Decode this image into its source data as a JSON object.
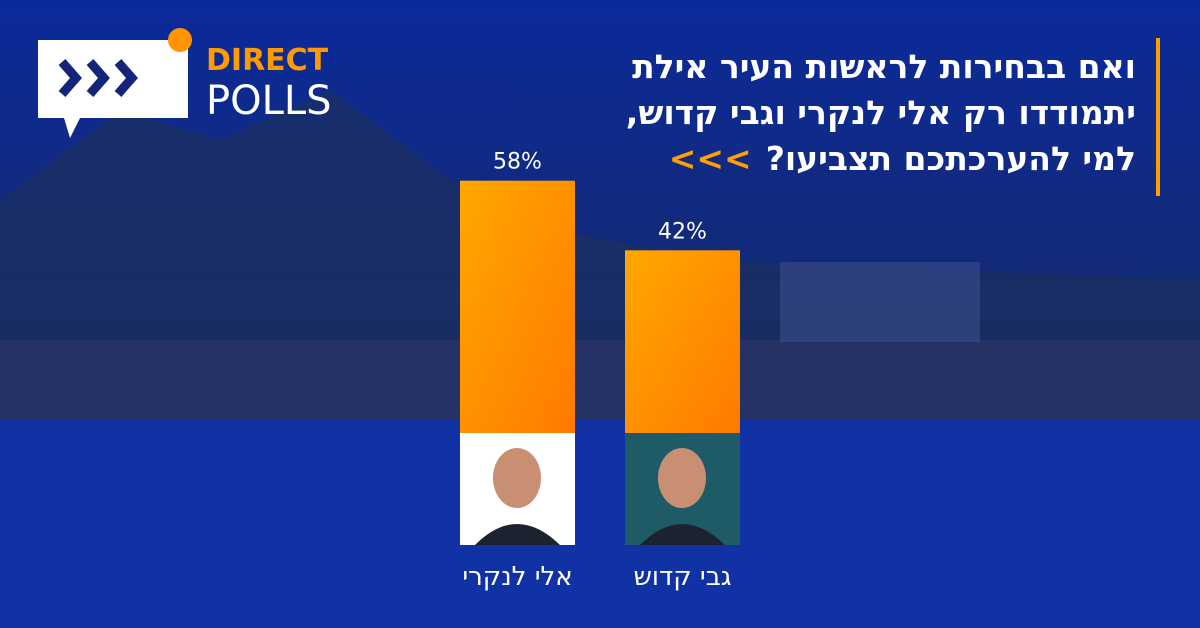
{
  "brand": {
    "line1": "DIRECT",
    "line2": "POLLS"
  },
  "chart_data": {
    "type": "bar",
    "title_lines": [
      "ואם בבחירות לראשות העיר אילת",
      "יתמודדו רק אלי לנקרי וגבי קדוש,",
      "למי להערכתכם תצביעו?"
    ],
    "title_marker": "<<<",
    "categories": [
      "אלי לנקרי",
      "גבי קדוש"
    ],
    "values": [
      58,
      42
    ],
    "value_labels": [
      "58%",
      "42%"
    ],
    "color": "#ff9400"
  }
}
